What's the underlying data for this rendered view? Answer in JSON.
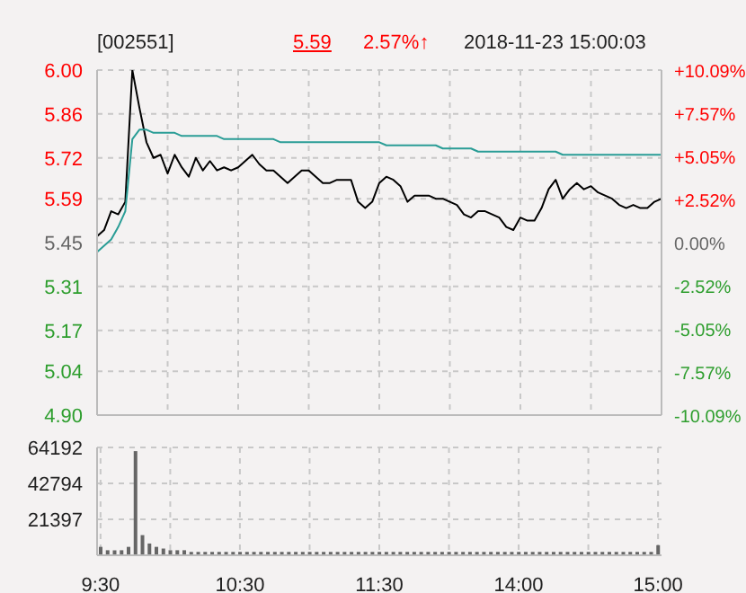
{
  "chart_data": [
    {
      "type": "line",
      "title": "[002551]",
      "annotations": [
        "5.59",
        "2.57%↑",
        "2018-11-23 15:00:03"
      ],
      "categories": [
        null,
        null,
        null,
        null,
        null,
        null,
        null,
        null,
        null,
        null,
        null,
        null,
        null,
        null,
        null,
        null,
        null,
        null,
        null,
        null,
        null,
        null,
        null,
        null,
        null,
        null,
        null,
        null,
        null,
        null,
        null,
        null,
        null,
        null,
        null,
        null,
        null,
        null,
        null,
        null,
        null,
        null,
        null,
        null,
        null,
        null,
        null,
        null,
        null,
        null,
        null,
        null,
        null,
        null,
        null,
        null,
        null,
        null,
        null,
        null,
        null,
        null,
        null,
        null,
        null,
        null,
        null,
        null,
        null,
        null,
        null,
        null,
        null,
        null,
        null,
        null,
        null,
        null,
        null,
        null,
        null
      ],
      "ylim": [
        4.9,
        6.0
      ],
      "yticks": [
        {
          "value": 4.9,
          "label": "4.90"
        },
        5.04,
        5.17,
        5.31,
        5.45,
        5.59,
        5.72,
        5.86,
        {
          "value": 6.0,
          "label": "6.00"
        }
      ],
      "y2lim": [
        -10.09,
        10.09
      ],
      "y2ticks": [
        {
          "value": -10.09,
          "label": "-10.09%"
        },
        {
          "value": -7.57,
          "label": "-7.57%"
        },
        {
          "value": -5.05,
          "label": "-5.05%"
        },
        {
          "value": -2.52,
          "label": "-2.52%"
        },
        {
          "value": 0,
          "label": "0.00%"
        },
        {
          "value": 2.52,
          "label": "+2.52%"
        },
        {
          "value": 5.05,
          "label": "+5.05%"
        },
        {
          "value": 7.57,
          "label": "+7.57%"
        },
        {
          "value": 10.09,
          "label": "+10.09%"
        }
      ],
      "grid": true,
      "tick_labels": "y",
      "series": [
        {
          "color": "#000000",
          "values": [
            5.47,
            5.49,
            5.55,
            5.54,
            5.58,
            6.0,
            5.88,
            5.77,
            5.72,
            5.73,
            5.67,
            5.73,
            5.69,
            5.66,
            5.72,
            5.68,
            5.71,
            5.68,
            5.69,
            5.68,
            5.69,
            5.71,
            5.73,
            5.7,
            5.68,
            5.68,
            5.66,
            5.64,
            5.66,
            5.68,
            5.68,
            5.66,
            5.64,
            5.64,
            5.65,
            5.65,
            5.65,
            5.58,
            5.56,
            5.58,
            5.64,
            5.66,
            5.65,
            5.63,
            5.58,
            5.6,
            5.6,
            5.6,
            5.59,
            5.59,
            5.58,
            5.57,
            5.54,
            5.53,
            5.55,
            5.55,
            5.54,
            5.53,
            5.5,
            5.49,
            5.53,
            5.52,
            5.52,
            5.56,
            5.62,
            5.65,
            5.59,
            5.62,
            5.64,
            5.62,
            5.63,
            5.61,
            5.6,
            5.59,
            5.57,
            5.56,
            5.57,
            5.56,
            5.56,
            5.58,
            5.59
          ]
        },
        {
          "color": "#2a9d96",
          "values": [
            5.42,
            5.44,
            5.46,
            5.5,
            5.55,
            5.78,
            5.81,
            5.81,
            5.8,
            5.8,
            5.8,
            5.8,
            5.79,
            5.79,
            5.79,
            5.79,
            5.79,
            5.79,
            5.78,
            5.78,
            5.78,
            5.78,
            5.78,
            5.78,
            5.78,
            5.78,
            5.77,
            5.77,
            5.77,
            5.77,
            5.77,
            5.77,
            5.77,
            5.77,
            5.77,
            5.77,
            5.77,
            5.77,
            5.77,
            5.77,
            5.77,
            5.76,
            5.76,
            5.76,
            5.76,
            5.76,
            5.76,
            5.76,
            5.76,
            5.75,
            5.75,
            5.75,
            5.75,
            5.75,
            5.74,
            5.74,
            5.74,
            5.74,
            5.74,
            5.74,
            5.74,
            5.74,
            5.74,
            5.74,
            5.74,
            5.74,
            5.73,
            5.73,
            5.73,
            5.73,
            5.73,
            5.73,
            5.73,
            5.73,
            5.73,
            5.73,
            5.73,
            5.73,
            5.73,
            5.73,
            5.73
          ]
        }
      ]
    },
    {
      "type": "bar",
      "color": "#666666",
      "categories": [
        "9:30",
        null,
        null,
        null,
        null,
        null,
        null,
        null,
        null,
        null,
        null,
        null,
        null,
        null,
        null,
        null,
        null,
        null,
        null,
        null,
        "10:30",
        null,
        null,
        null,
        null,
        null,
        null,
        null,
        null,
        null,
        null,
        null,
        null,
        null,
        null,
        null,
        null,
        null,
        null,
        null,
        "11:30",
        null,
        null,
        null,
        null,
        null,
        null,
        null,
        null,
        null,
        null,
        null,
        null,
        null,
        null,
        null,
        null,
        null,
        null,
        null,
        "14:00",
        null,
        null,
        null,
        null,
        null,
        null,
        null,
        null,
        null,
        null,
        null,
        null,
        null,
        null,
        null,
        null,
        null,
        null,
        null,
        "15:00"
      ],
      "ylim": [
        0,
        64192
      ],
      "yticks": [
        {
          "value": 0,
          "label": null
        },
        21397,
        42794,
        64192
      ],
      "grid": true,
      "values": [
        5000,
        3000,
        3000,
        3000,
        5000,
        62000,
        12000,
        7000,
        5000,
        4000,
        3000,
        3000,
        3000,
        2000,
        2000,
        2000,
        2000,
        2000,
        2000,
        2000,
        2000,
        2000,
        2000,
        2000,
        2000,
        2000,
        2000,
        2000,
        2000,
        2000,
        2000,
        2000,
        2000,
        2000,
        2000,
        2000,
        2000,
        2000,
        2000,
        2000,
        2000,
        2000,
        2000,
        2000,
        2000,
        2000,
        2000,
        2000,
        2000,
        2000,
        2000,
        2000,
        2000,
        2000,
        2000,
        2000,
        2000,
        2000,
        2000,
        2000,
        2000,
        2000,
        2000,
        2000,
        2000,
        2000,
        2000,
        2000,
        2000,
        2000,
        2000,
        2000,
        2000,
        2000,
        2000,
        2000,
        2000,
        2000,
        2000,
        2000,
        6000
      ]
    }
  ]
}
